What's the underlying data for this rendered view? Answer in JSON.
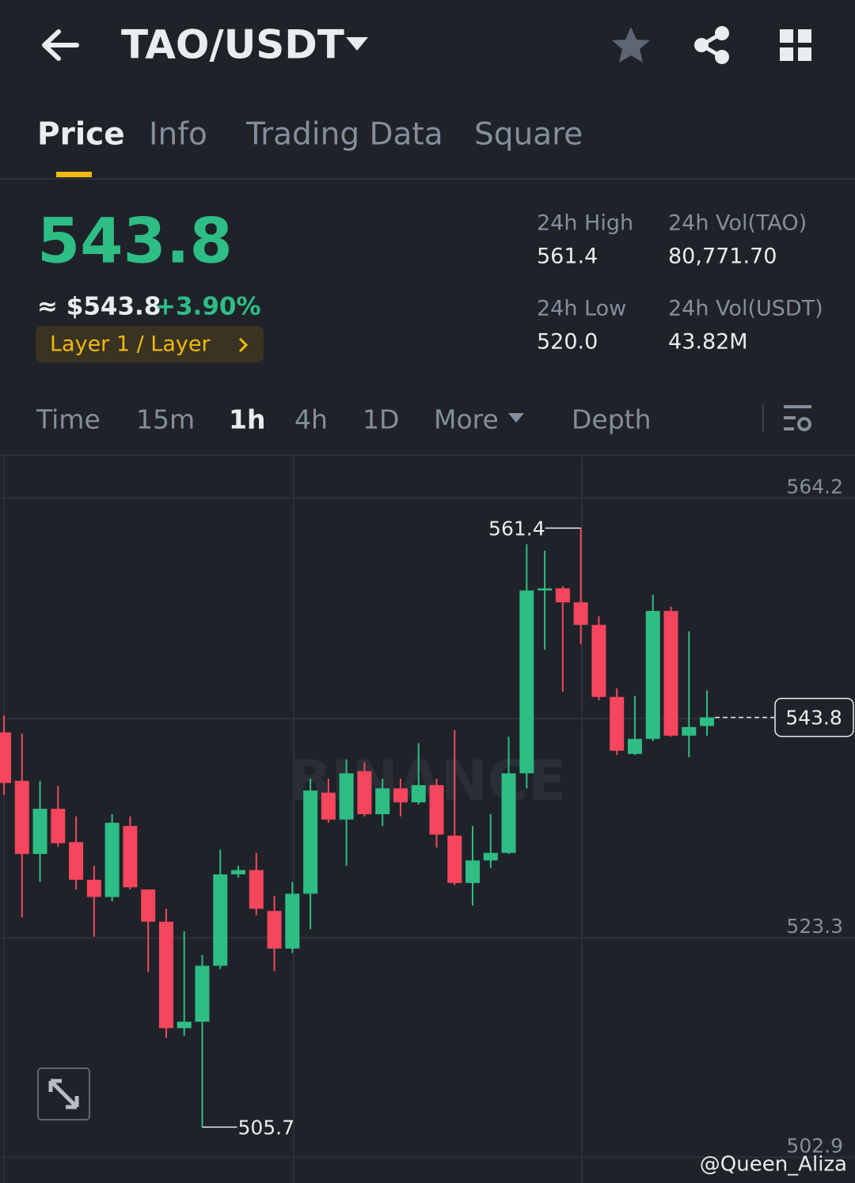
{
  "header": {
    "title": "TAO/USDT"
  },
  "tabs": [
    "Price",
    "Info",
    "Trading Data",
    "Square"
  ],
  "ticker": {
    "price": "543.8",
    "usd_price": "≈ $543.8",
    "change": "+3.90%",
    "tag": "Layer 1 / Layer"
  },
  "stats": [
    {
      "label": "24h High",
      "value": "561.4"
    },
    {
      "label": "24h Vol(TAO)",
      "value": "80,771.70"
    },
    {
      "label": "24h Low",
      "value": "520.0"
    },
    {
      "label": "24h Vol(USDT)",
      "value": "43.82M"
    }
  ],
  "intervals": [
    "Time",
    "15m",
    "1h",
    "4h",
    "1D",
    "More",
    "Depth"
  ],
  "chart_data": {
    "type": "candlestick",
    "open": [
      542.4,
      537.9,
      531.1,
      535.3,
      532.2,
      528.7,
      527.1,
      533.7,
      527.8,
      524.8,
      514.9,
      515.5,
      520.7,
      529.2,
      529.6,
      525.8,
      522.3,
      527.4,
      536.8,
      534.3,
      538.8,
      534.8,
      537.2,
      535.9,
      537.5,
      532.8,
      528.4,
      530.5,
      531.2,
      538.6,
      555.6,
      555.8,
      554.5,
      552.4,
      545.7,
      540.4,
      541.8,
      553.7,
      542.1,
      543.0
    ],
    "high": [
      544.0,
      542.3,
      537.9,
      537.4,
      534.6,
      530.0,
      534.8,
      534.6,
      527.8,
      526.0,
      523.9,
      521.7,
      531.5,
      530.0,
      531.2,
      527.2,
      528.5,
      538.1,
      538.1,
      539.9,
      539.6,
      538.1,
      538.1,
      541.4,
      538.1,
      542.6,
      533.7,
      534.8,
      542.0,
      559.9,
      559.3,
      556.0,
      561.4,
      553.2,
      546.5,
      545.8,
      555.2,
      554.1,
      551.8,
      546.3
    ],
    "low": [
      536.6,
      525.2,
      528.5,
      531.8,
      527.8,
      523.4,
      526.7,
      527.8,
      520.1,
      514.0,
      514.2,
      505.7,
      520.4,
      528.9,
      525.4,
      520.2,
      521.9,
      524.1,
      534.0,
      530.0,
      534.6,
      533.7,
      534.6,
      535.7,
      531.7,
      528.2,
      526.3,
      529.8,
      531.1,
      537.2,
      550.1,
      546.2,
      550.6,
      545.4,
      540.3,
      540.3,
      541.6,
      542.0,
      540.1,
      542.1
    ],
    "close": [
      537.7,
      531.1,
      535.3,
      532.1,
      528.7,
      527.1,
      534.0,
      528.0,
      524.8,
      514.9,
      515.5,
      520.7,
      529.2,
      529.6,
      526.0,
      522.3,
      527.4,
      537.0,
      534.3,
      538.6,
      534.8,
      537.2,
      535.9,
      537.5,
      532.9,
      528.4,
      530.5,
      531.2,
      538.6,
      555.6,
      555.8,
      554.5,
      552.4,
      545.7,
      540.7,
      541.8,
      553.7,
      542.1,
      542.9,
      543.8
    ],
    "up_color": "#2ebd85",
    "down_color": "#f6465d",
    "ylim": [
      500.5,
      568.2
    ],
    "yticks": [
      564.2,
      523.3,
      502.9
    ],
    "grid": true,
    "annotations": {
      "high": "561.4",
      "low": "505.7",
      "last": "543.8"
    },
    "watermark": "BINANCE"
  },
  "credit": "@Queen_Aliza"
}
